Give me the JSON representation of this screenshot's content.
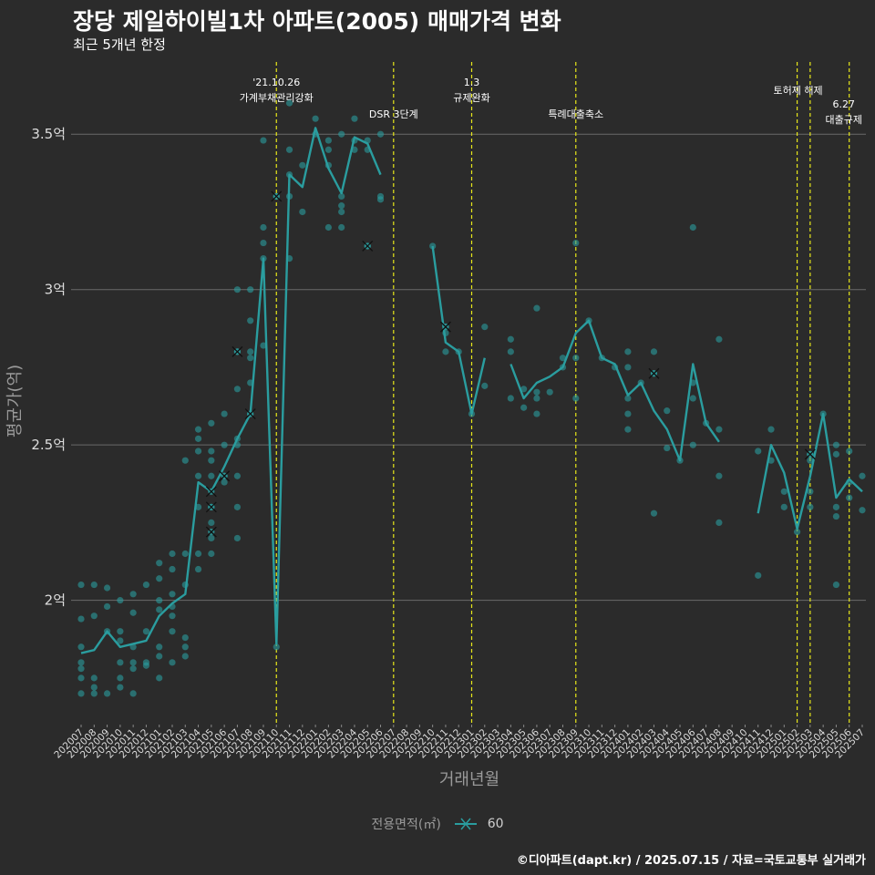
{
  "title": "장당 제일하이빌1차 아파트(2005) 매매가격 변화",
  "subtitle": "최근 5개년 한정",
  "caption": "©디아파트(dapt.kr) / 2025.07.15 / 자료=국토교통부 실거래가",
  "legend": {
    "title": "전용면적(㎡)",
    "label": "60"
  },
  "colors": {
    "background": "#2b2b2b",
    "series": "#2a9d9f",
    "grid": "#6a6a6a",
    "event_line": "#e8e81a",
    "axis_text": "#9a9a9a"
  },
  "chart_data": {
    "type": "line",
    "xlabel": "거래년월",
    "ylabel": "평균가(억)",
    "ylim": [
      1.6,
      3.75
    ],
    "grid": true,
    "legend_position": "bottom",
    "y_ticks": [
      {
        "value": 2.0,
        "label": "2억"
      },
      {
        "value": 2.5,
        "label": "2.5억"
      },
      {
        "value": 3.0,
        "label": "3억"
      },
      {
        "value": 3.5,
        "label": "3.5억"
      }
    ],
    "categories": [
      "202007",
      "202008",
      "202009",
      "202010",
      "202011",
      "202012",
      "202101",
      "202102",
      "202103",
      "202104",
      "202105",
      "202106",
      "202107",
      "202108",
      "202109",
      "202110",
      "202111",
      "202112",
      "202201",
      "202202",
      "202203",
      "202204",
      "202205",
      "202206",
      "202207",
      "202208",
      "202209",
      "202210",
      "202211",
      "202212",
      "202301",
      "202302",
      "202303",
      "202304",
      "202305",
      "202306",
      "202307",
      "202308",
      "202309",
      "202310",
      "202311",
      "202312",
      "202401",
      "202402",
      "202403",
      "202404",
      "202405",
      "202406",
      "202407",
      "202408",
      "202409",
      "202410",
      "202411",
      "202412",
      "202501",
      "202502",
      "202503",
      "202504",
      "202505",
      "202506",
      "202507"
    ],
    "series": [
      {
        "name": "60",
        "values": [
          1.83,
          1.84,
          1.9,
          1.85,
          1.86,
          1.87,
          1.95,
          1.99,
          2.02,
          2.38,
          2.35,
          2.43,
          2.52,
          2.6,
          3.1,
          1.86,
          3.37,
          3.33,
          3.52,
          3.39,
          3.31,
          3.49,
          3.47,
          3.37,
          null,
          null,
          null,
          3.14,
          2.83,
          2.8,
          2.6,
          2.78,
          null,
          2.76,
          2.65,
          2.7,
          2.72,
          2.75,
          2.86,
          2.9,
          2.78,
          2.76,
          2.66,
          2.7,
          2.61,
          2.55,
          2.45,
          2.76,
          2.57,
          2.51,
          null,
          null,
          2.28,
          2.5,
          2.41,
          2.23,
          2.4,
          2.6,
          2.33,
          2.39,
          2.35
        ]
      }
    ],
    "points": [
      {
        "x": "202007",
        "y": [
          2.05,
          1.94,
          1.85,
          1.8,
          1.78,
          1.75,
          1.7
        ]
      },
      {
        "x": "202008",
        "y": [
          2.05,
          1.95,
          1.75,
          1.72,
          1.7
        ]
      },
      {
        "x": "202009",
        "y": [
          2.04,
          1.98,
          1.9,
          1.7
        ]
      },
      {
        "x": "202010",
        "y": [
          2.0,
          1.9,
          1.87,
          1.8,
          1.75,
          1.72
        ]
      },
      {
        "x": "202011",
        "y": [
          2.02,
          1.96,
          1.85,
          1.8,
          1.78,
          1.7
        ]
      },
      {
        "x": "202012",
        "y": [
          2.05,
          1.9,
          1.8,
          1.79
        ]
      },
      {
        "x": "202101",
        "y": [
          2.12,
          2.07,
          2.0,
          1.97,
          1.85,
          1.82,
          1.75
        ]
      },
      {
        "x": "202102",
        "y": [
          2.15,
          2.1,
          2.02,
          1.98,
          1.95,
          1.9,
          1.8
        ]
      },
      {
        "x": "202103",
        "y": [
          2.45,
          2.15,
          2.05,
          1.88,
          1.85,
          1.82
        ]
      },
      {
        "x": "202104",
        "y": [
          2.55,
          2.52,
          2.48,
          2.4,
          2.3,
          2.15,
          2.1
        ]
      },
      {
        "x": "202105",
        "y": [
          2.57,
          2.48,
          2.45,
          2.4,
          2.3,
          2.25,
          2.2,
          2.15
        ]
      },
      {
        "x": "202106",
        "y": [
          2.6,
          2.5,
          2.4,
          2.38
        ]
      },
      {
        "x": "202107",
        "y": [
          3.0,
          2.8,
          2.68,
          2.52,
          2.5,
          2.4,
          2.3,
          2.2
        ]
      },
      {
        "x": "202108",
        "y": [
          3.0,
          2.9,
          2.8,
          2.78,
          2.7,
          2.6
        ]
      },
      {
        "x": "202109",
        "y": [
          3.48,
          3.2,
          3.15,
          3.1,
          2.82
        ]
      },
      {
        "x": "202110",
        "y": [
          3.3,
          1.85
        ]
      },
      {
        "x": "202111",
        "y": [
          3.6,
          3.45,
          3.37,
          3.3,
          3.1
        ]
      },
      {
        "x": "202112",
        "y": [
          3.4,
          3.25
        ]
      },
      {
        "x": "202201",
        "y": [
          3.55,
          3.5
        ]
      },
      {
        "x": "202202",
        "y": [
          3.48,
          3.45,
          3.4,
          3.2
        ]
      },
      {
        "x": "202203",
        "y": [
          3.5,
          3.3,
          3.27,
          3.25,
          3.2
        ]
      },
      {
        "x": "202204",
        "y": [
          3.55,
          3.48,
          3.45
        ]
      },
      {
        "x": "202205",
        "y": [
          3.48,
          3.45,
          3.14
        ]
      },
      {
        "x": "202206",
        "y": [
          3.5,
          3.3,
          3.29
        ]
      },
      {
        "x": "202210",
        "y": [
          3.14
        ]
      },
      {
        "x": "202211",
        "y": [
          2.88,
          2.86,
          2.8
        ]
      },
      {
        "x": "202212",
        "y": [
          2.8
        ]
      },
      {
        "x": "202301",
        "y": [
          2.6
        ]
      },
      {
        "x": "202302",
        "y": [
          2.88,
          2.69
        ]
      },
      {
        "x": "202304",
        "y": [
          2.84,
          2.8,
          2.65
        ]
      },
      {
        "x": "202305",
        "y": [
          2.68,
          2.62
        ]
      },
      {
        "x": "202306",
        "y": [
          2.94,
          2.67,
          2.65,
          2.6
        ]
      },
      {
        "x": "202307",
        "y": [
          2.67
        ]
      },
      {
        "x": "202308",
        "y": [
          2.78,
          2.75
        ]
      },
      {
        "x": "202309",
        "y": [
          3.15,
          2.78,
          2.65
        ]
      },
      {
        "x": "202310",
        "y": [
          2.9
        ]
      },
      {
        "x": "202311",
        "y": [
          2.78
        ]
      },
      {
        "x": "202312",
        "y": [
          2.75
        ]
      },
      {
        "x": "202401",
        "y": [
          2.8,
          2.75,
          2.65,
          2.6,
          2.55
        ]
      },
      {
        "x": "202402",
        "y": [
          2.7
        ]
      },
      {
        "x": "202403",
        "y": [
          2.8,
          2.73,
          2.28
        ]
      },
      {
        "x": "202404",
        "y": [
          2.61,
          2.49
        ]
      },
      {
        "x": "202405",
        "y": [
          2.45
        ]
      },
      {
        "x": "202406",
        "y": [
          3.2,
          2.7,
          2.65,
          2.5
        ]
      },
      {
        "x": "202407",
        "y": [
          2.57
        ]
      },
      {
        "x": "202408",
        "y": [
          2.84,
          2.55,
          2.4,
          2.25
        ]
      },
      {
        "x": "202411",
        "y": [
          2.48,
          2.08
        ]
      },
      {
        "x": "202412",
        "y": [
          2.55,
          2.45
        ]
      },
      {
        "x": "202501",
        "y": [
          2.35,
          2.3
        ]
      },
      {
        "x": "202502",
        "y": [
          2.22
        ]
      },
      {
        "x": "202503",
        "y": [
          2.47,
          2.45,
          2.35,
          2.3
        ]
      },
      {
        "x": "202504",
        "y": [
          2.6
        ]
      },
      {
        "x": "202505",
        "y": [
          2.5,
          2.47,
          2.3,
          2.27,
          2.05
        ]
      },
      {
        "x": "202506",
        "y": [
          2.48,
          2.38,
          2.33
        ]
      },
      {
        "x": "202507",
        "y": [
          2.4,
          2.29
        ]
      }
    ],
    "crossed_points": [
      {
        "x": "202105",
        "y": 2.35
      },
      {
        "x": "202105",
        "y": 2.3
      },
      {
        "x": "202105",
        "y": 2.22
      },
      {
        "x": "202106",
        "y": 2.4
      },
      {
        "x": "202107",
        "y": 2.8
      },
      {
        "x": "202108",
        "y": 2.6
      },
      {
        "x": "202110",
        "y": 3.3
      },
      {
        "x": "202205",
        "y": 3.14
      },
      {
        "x": "202211",
        "y": 2.88
      },
      {
        "x": "202403",
        "y": 2.73
      },
      {
        "x": "202503",
        "y": 2.47
      }
    ],
    "events": [
      {
        "x": "202110",
        "lines": [
          "'21.10.26",
          "가계부채관리강화"
        ]
      },
      {
        "x": "202207",
        "lines": [
          "DSR 3단계"
        ]
      },
      {
        "x": "202301",
        "lines": [
          "1.3",
          "규제완화"
        ]
      },
      {
        "x": "202309",
        "lines": [
          "특례대출축소"
        ]
      },
      {
        "x": "202502",
        "lines": [
          "토허제 해제"
        ]
      },
      {
        "x": "202503",
        "lines": []
      },
      {
        "x": "202506",
        "lines": [
          "6.27",
          "대출규제"
        ]
      }
    ]
  }
}
